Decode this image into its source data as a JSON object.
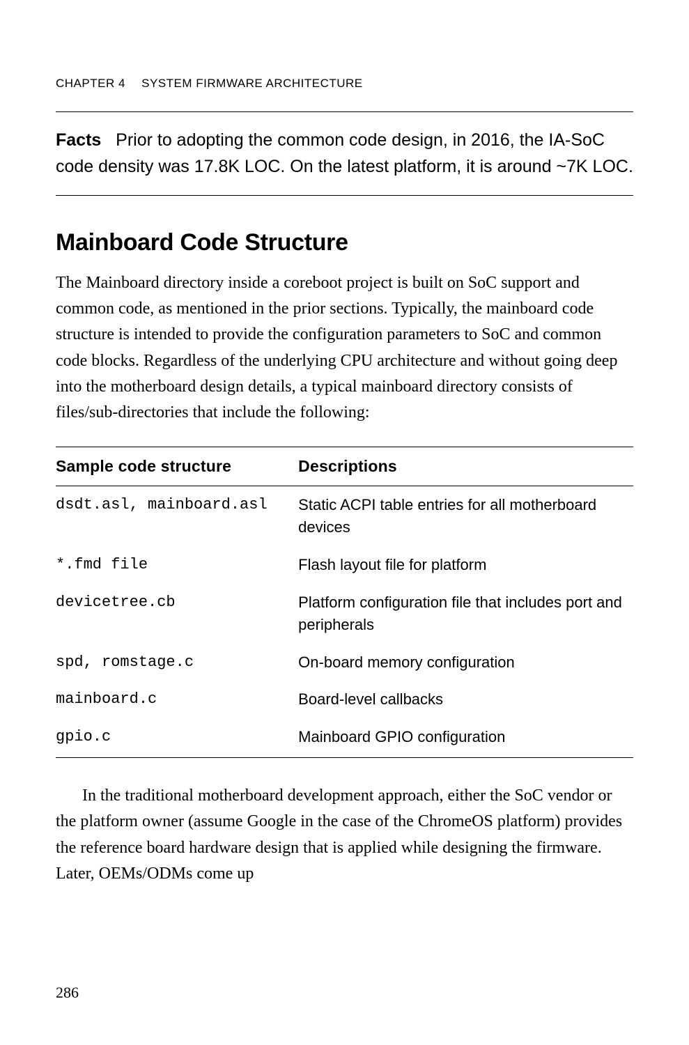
{
  "header": {
    "chapter_label": "CHAPTER 4",
    "chapter_title": "SYSTEM FIRMWARE ARCHITECTURE"
  },
  "facts": {
    "label": "Facts",
    "text": "Prior to adopting the common code design, in 2016, the IA-SoC code density was 17.8K LOC. On the latest platform, it is around ~7K LOC."
  },
  "section": {
    "heading": "Mainboard Code Structure",
    "paragraph_1": "The Mainboard directory inside a coreboot project is built on SoC support and common code, as mentioned in the prior sections. Typically, the mainboard code structure is intended to provide the configuration parameters to SoC and common code blocks. Regardless of the underlying CPU architecture and without going deep into the motherboard design details, a typical mainboard directory consists of files/sub-directories that include the following:"
  },
  "table": {
    "columns": [
      "Sample code structure",
      "Descriptions"
    ],
    "rows": [
      {
        "code": "dsdt.asl, mainboard.asl",
        "desc": "Static ACPI table entries for all motherboard devices"
      },
      {
        "code": "*.fmd file",
        "desc": "Flash layout file for platform"
      },
      {
        "code": "devicetree.cb",
        "desc": "Platform configuration file that includes port and peripherals"
      },
      {
        "code": "spd, romstage.c",
        "desc": "On-board memory configuration"
      },
      {
        "code": "mainboard.c",
        "desc": "Board-level callbacks"
      },
      {
        "code": "gpio.c",
        "desc": "Mainboard GPIO configuration"
      }
    ]
  },
  "after_table_paragraph": "In the traditional motherboard development approach, either the SoC vendor or the platform owner (assume Google in the case of the ChromeOS platform) provides the reference board hardware design that is applied while designing the firmware. Later, OEMs/ODMs come up",
  "page_number": "286"
}
